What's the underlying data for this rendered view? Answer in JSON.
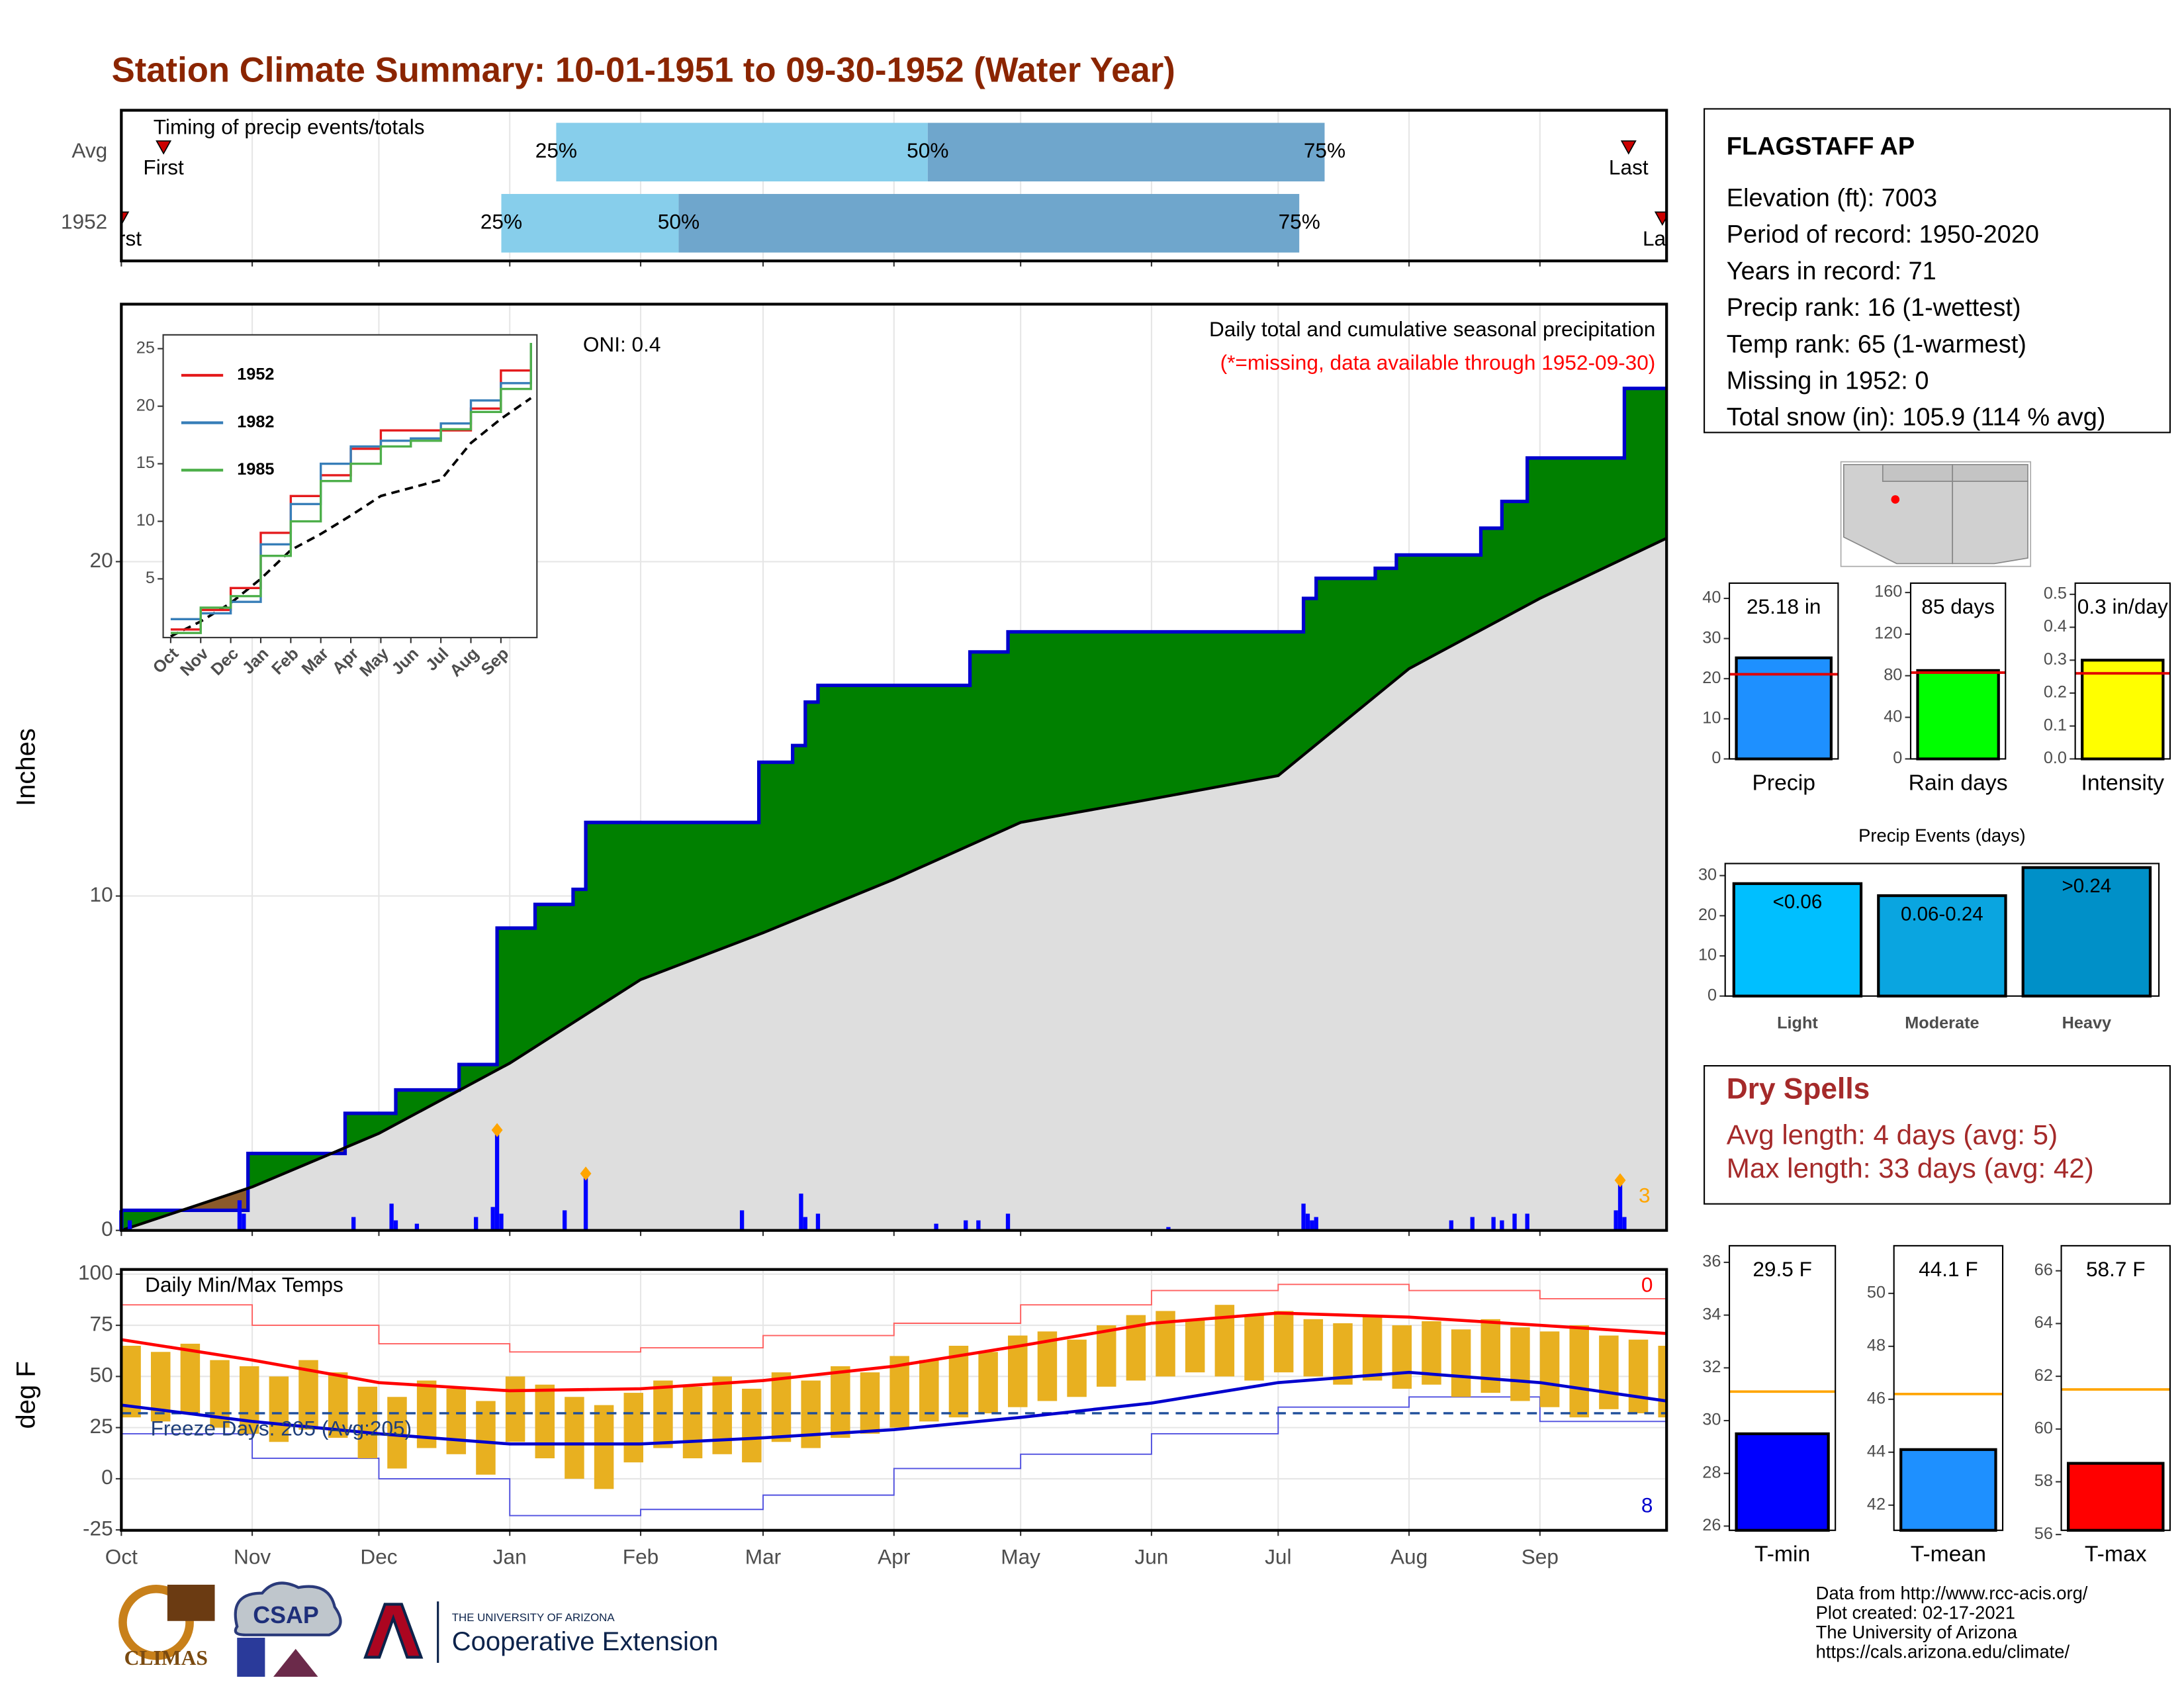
{
  "title": "Station Climate Summary: 10-01-1951 to 09-30-1952 (Water Year)",
  "chart_data": [
    {
      "type": "timing",
      "title": "Timing of precip events/totals",
      "categories": [
        "Avg",
        "1952"
      ],
      "first": [
        10,
        0
      ],
      "q25": [
        103,
        90
      ],
      "q50": [
        191,
        132
      ],
      "q75": [
        285,
        279
      ],
      "last": [
        357,
        365
      ],
      "quartile_labels": [
        "25%",
        "50%",
        "75%"
      ],
      "first_label": "First",
      "last_label": "Last",
      "colors": [
        "#87ceeb",
        "#6fa6cc"
      ],
      "marker_color": "#cc0000",
      "xlim": [
        0,
        366
      ],
      "xticks": [
        {
          "value": 0,
          "label": "Oct"
        },
        {
          "value": 31,
          "label": "Nov"
        },
        {
          "value": 61,
          "label": "Dec"
        },
        {
          "value": 92,
          "label": "Jan"
        },
        {
          "value": 123,
          "label": "Feb"
        },
        {
          "value": 152,
          "label": "Mar"
        },
        {
          "value": 183,
          "label": "Apr"
        },
        {
          "value": 213,
          "label": "May"
        },
        {
          "value": 244,
          "label": "Jun"
        },
        {
          "value": 274,
          "label": "Jul"
        },
        {
          "value": 305,
          "label": "Aug"
        },
        {
          "value": 336,
          "label": "Sep"
        }
      ]
    },
    {
      "type": "precip",
      "ylabel": "Inches",
      "annotations": [
        "ONI: 0.4",
        "Daily total and cumulative seasonal precipitation",
        "(*=missing, data available through 1952-09-30)",
        "3"
      ],
      "cumulative": {
        "color": "#0000cd",
        "fill": "#008000",
        "x": [
          0,
          30,
          53,
          65,
          80,
          89,
          98,
          107,
          110,
          151,
          159,
          162,
          165,
          201,
          210,
          280,
          283,
          297,
          302,
          322,
          327,
          333,
          356,
          366
        ],
        "values": [
          0.6,
          2.3,
          3.5,
          4.2,
          4.96,
          9.04,
          9.75,
          10.2,
          12.2,
          14.0,
          14.5,
          15.8,
          16.3,
          17.3,
          17.9,
          18.9,
          19.5,
          19.8,
          20.2,
          21.0,
          21.8,
          23.1,
          25.18,
          25.18
        ]
      },
      "average_cumulative": {
        "color": "#000000",
        "fill": "#dedede",
        "deficit_fill": "#8b5a2b",
        "x": [
          0,
          31,
          61,
          92,
          123,
          152,
          183,
          213,
          244,
          274,
          305,
          336,
          366
        ],
        "values": [
          0,
          1.3,
          2.9,
          5.0,
          7.5,
          8.9,
          10.5,
          12.2,
          12.9,
          13.6,
          16.8,
          18.9,
          20.7
        ]
      },
      "daily": {
        "color": "#0000ff",
        "highlight_color": "#ffa500",
        "x": [
          0,
          2,
          28,
          29,
          55,
          64,
          65,
          70,
          84,
          88,
          89,
          90,
          105,
          110,
          147,
          161,
          162,
          165,
          193,
          200,
          203,
          210,
          248,
          280,
          281,
          282,
          283,
          315,
          320,
          325,
          327,
          330,
          333,
          354,
          355,
          356
        ],
        "values": [
          0.6,
          0.3,
          0.9,
          0.5,
          0.4,
          0.8,
          0.3,
          0.2,
          0.4,
          0.7,
          3.0,
          0.5,
          0.6,
          1.7,
          0.6,
          1.1,
          0.4,
          0.5,
          0.2,
          0.3,
          0.3,
          0.5,
          0.1,
          0.8,
          0.5,
          0.3,
          0.4,
          0.3,
          0.4,
          0.4,
          0.3,
          0.5,
          0.5,
          0.6,
          1.5,
          0.4
        ],
        "highlight": [
          10,
          13,
          34
        ]
      },
      "xlim": [
        0,
        366
      ],
      "xticks": [
        0,
        31,
        61,
        92,
        123,
        152,
        183,
        213,
        244,
        274,
        305,
        336
      ],
      "ylim": [
        0,
        27.7
      ],
      "yticks": [
        0,
        10,
        20
      ],
      "grid": true
    },
    {
      "type": "inset",
      "series": [
        {
          "name": "1952",
          "color": "#e41a1c",
          "values": [
            0.6,
            2.3,
            4.2,
            9.0,
            12.2,
            14.0,
            16.3,
            17.9,
            17.9,
            17.9,
            19.8,
            23.1,
            25.2
          ]
        },
        {
          "name": "1982",
          "color": "#377eb8",
          "values": [
            1.5,
            2.0,
            3.0,
            8.0,
            11.5,
            15.0,
            16.5,
            17.0,
            17.2,
            18.5,
            20.5,
            22.0,
            25.5
          ]
        },
        {
          "name": "1985",
          "color": "#4daf4a",
          "values": [
            0.3,
            2.5,
            3.5,
            7.0,
            10.0,
            13.5,
            15.0,
            16.5,
            17.0,
            18.0,
            19.5,
            21.5,
            25.5
          ]
        }
      ],
      "average": {
        "color": "#000000",
        "values": [
          0,
          1.3,
          2.9,
          5.0,
          7.5,
          8.9,
          10.5,
          12.2,
          12.9,
          13.6,
          16.8,
          18.9,
          20.7
        ]
      },
      "x": [
        0,
        1,
        2,
        3,
        4,
        5,
        6,
        7,
        8,
        9,
        10,
        11,
        12
      ],
      "xlim": [
        -0.25,
        12.2
      ],
      "xticks": [
        {
          "value": 0,
          "label": "Oct"
        },
        {
          "value": 1,
          "label": "Nov"
        },
        {
          "value": 2,
          "label": "Dec"
        },
        {
          "value": 3,
          "label": "Jan"
        },
        {
          "value": 4,
          "label": "Feb"
        },
        {
          "value": 5,
          "label": "Mar"
        },
        {
          "value": 6,
          "label": "Apr"
        },
        {
          "value": 7,
          "label": "May"
        },
        {
          "value": 8,
          "label": "Jun"
        },
        {
          "value": 9,
          "label": "Jul"
        },
        {
          "value": 10,
          "label": "Aug"
        },
        {
          "value": 11,
          "label": "Sep"
        }
      ],
      "ylim": [
        -0.1,
        26.2
      ],
      "yticks": [
        5,
        10,
        15,
        20,
        25
      ]
    },
    {
      "type": "temps",
      "title": "Daily Min/Max Temps",
      "ylabel": "deg F",
      "annotations": [
        "Freeze Days: 205 (Avg:205)",
        "0",
        "8"
      ],
      "freeze_line": 32,
      "daily": {
        "color": "#e8b020",
        "x": [
          0,
          7,
          14,
          21,
          28,
          35,
          42,
          49,
          56,
          63,
          70,
          77,
          84,
          91,
          98,
          105,
          112,
          119,
          126,
          133,
          140,
          147,
          154,
          161,
          168,
          175,
          182,
          189,
          196,
          203,
          210,
          217,
          224,
          231,
          238,
          245,
          252,
          259,
          266,
          273,
          280,
          287,
          294,
          301,
          308,
          315,
          322,
          329,
          336,
          343,
          350,
          357,
          364
        ],
        "max": [
          65,
          62,
          66,
          58,
          55,
          50,
          58,
          52,
          45,
          40,
          48,
          44,
          38,
          50,
          46,
          40,
          36,
          42,
          48,
          45,
          50,
          44,
          52,
          48,
          55,
          52,
          60,
          58,
          65,
          62,
          70,
          72,
          68,
          75,
          80,
          82,
          78,
          85,
          80,
          82,
          78,
          76,
          80,
          75,
          77,
          73,
          78,
          74,
          72,
          75,
          70,
          68,
          65
        ],
        "min": [
          30,
          28,
          32,
          25,
          22,
          18,
          24,
          20,
          10,
          5,
          15,
          12,
          2,
          18,
          10,
          0,
          -5,
          8,
          15,
          10,
          12,
          8,
          18,
          15,
          20,
          22,
          25,
          28,
          30,
          32,
          35,
          38,
          40,
          45,
          48,
          50,
          52,
          50,
          48,
          52,
          50,
          46,
          48,
          44,
          46,
          40,
          42,
          38,
          35,
          30,
          34,
          32,
          30
        ]
      },
      "x": [
        0,
        31,
        61,
        92,
        123,
        152,
        183,
        213,
        244,
        274,
        305,
        336,
        366
      ],
      "average_max": {
        "color": "#ff0000",
        "values": [
          68,
          58,
          47,
          43,
          44,
          48,
          55,
          65,
          76,
          81,
          79,
          75,
          71
        ]
      },
      "average_min": {
        "color": "#0000cd",
        "values": [
          36,
          28,
          22,
          17,
          17,
          20,
          24,
          30,
          37,
          47,
          52,
          47,
          38
        ]
      },
      "record_high": {
        "color": "#ff6060",
        "values": [
          85,
          75,
          66,
          62,
          64,
          70,
          76,
          85,
          92,
          95,
          92,
          88,
          83
        ]
      },
      "record_low": {
        "color": "#5050e0",
        "values": [
          22,
          10,
          0,
          -18,
          -15,
          -8,
          5,
          12,
          22,
          35,
          40,
          28,
          22
        ]
      },
      "xlim": [
        0,
        366
      ],
      "xticks": [
        {
          "value": 0,
          "label": "Oct"
        },
        {
          "value": 31,
          "label": "Nov"
        },
        {
          "value": 61,
          "label": "Dec"
        },
        {
          "value": 92,
          "label": "Jan"
        },
        {
          "value": 123,
          "label": "Feb"
        },
        {
          "value": 152,
          "label": "Mar"
        },
        {
          "value": 183,
          "label": "Apr"
        },
        {
          "value": 213,
          "label": "May"
        },
        {
          "value": 244,
          "label": "Jun"
        },
        {
          "value": 274,
          "label": "Jul"
        },
        {
          "value": 305,
          "label": "Aug"
        },
        {
          "value": 336,
          "label": "Sep"
        }
      ],
      "ylim": [
        -25.2,
        102.3
      ],
      "yticks": [
        -25,
        0,
        25,
        50,
        75,
        100
      ],
      "grid": true
    },
    {
      "type": "summary",
      "label": "Precip",
      "value": 25.18,
      "value_label": "25.18 in",
      "average": 21.1,
      "color": "#1e90ff",
      "average_color": "#e00000",
      "ylim": [
        0,
        43.8
      ],
      "yticks": [
        0,
        10,
        20,
        30,
        40
      ]
    },
    {
      "type": "summary",
      "label": "Rain days",
      "value": 85,
      "value_label": "85 days",
      "average": 83,
      "color": "#00ff00",
      "average_color": "#e00000",
      "ylim": [
        0,
        169
      ],
      "yticks": [
        0,
        40,
        80,
        120,
        160
      ]
    },
    {
      "type": "summary",
      "label": "Intensity",
      "value": 0.3,
      "value_label": "0.3 in/day",
      "average": 0.26,
      "color": "#ffff00",
      "average_color": "#e00000",
      "ylim": [
        0,
        0.534
      ],
      "yticks": [
        {
          "value": 0,
          "label": "0.0"
        },
        0.1,
        0.2,
        0.3,
        0.4,
        0.5
      ]
    },
    {
      "type": "bar",
      "title": "Precip Events (days)",
      "categories": [
        "Light",
        "Moderate",
        "Heavy"
      ],
      "values": [
        28,
        25,
        32
      ],
      "value_labels": [
        "<0.06",
        "0.06-0.24",
        ">0.24"
      ],
      "colors": [
        "#00bfff",
        "#0aa5e0",
        "#0090c8"
      ],
      "ylim": [
        0,
        33
      ],
      "yticks": [
        0,
        10,
        20,
        30
      ]
    },
    {
      "type": "summary",
      "label": "T-min",
      "value": 29.5,
      "value_label": "29.5 F",
      "average": 31.1,
      "color": "#0000ff",
      "average_color": "#ffa500",
      "ylim": [
        25.84,
        36.63
      ],
      "yticks": [
        26,
        28,
        30,
        32,
        34,
        36
      ]
    },
    {
      "type": "summary",
      "label": "T-mean",
      "value": 44.1,
      "value_label": "44.1 F",
      "average": 46.2,
      "color": "#1e90ff",
      "average_color": "#ffa500",
      "ylim": [
        41.05,
        51.8
      ],
      "yticks": [
        42,
        44,
        46,
        48,
        50
      ]
    },
    {
      "type": "summary",
      "label": "T-max",
      "value": 58.7,
      "value_label": "58.7 F",
      "average": 61.5,
      "color": "#ff0000",
      "average_color": "#ffa500",
      "ylim": [
        56.16,
        66.95
      ],
      "yticks": [
        56,
        58,
        60,
        62,
        64,
        66
      ]
    }
  ],
  "station": {
    "name": "FLAGSTAFF AP",
    "lines": [
      "Elevation (ft): 7003",
      "Period of record: 1950-2020",
      "Years in record: 71",
      "Precip rank: 16 (1-wettest)",
      "Temp rank: 65 (1-warmest)",
      "Missing in 1952: 0",
      "Total snow (in): 105.9 (114 % avg)"
    ]
  },
  "dry_spells": {
    "title": "Dry Spells",
    "lines": [
      "Avg length: 4 days (avg: 5)",
      "Max length: 33 days (avg: 42)"
    ]
  },
  "footer": [
    "Data from http://www.rcc-acis.org/",
    "Plot created: 02-17-2021",
    "The University of Arizona",
    "https://cals.arizona.edu/climate/"
  ],
  "logos": {
    "climas": "CLIMAS",
    "csap": "CSAP",
    "university": "THE UNIVERSITY OF ARIZONA",
    "extension": "Cooperative Extension"
  }
}
